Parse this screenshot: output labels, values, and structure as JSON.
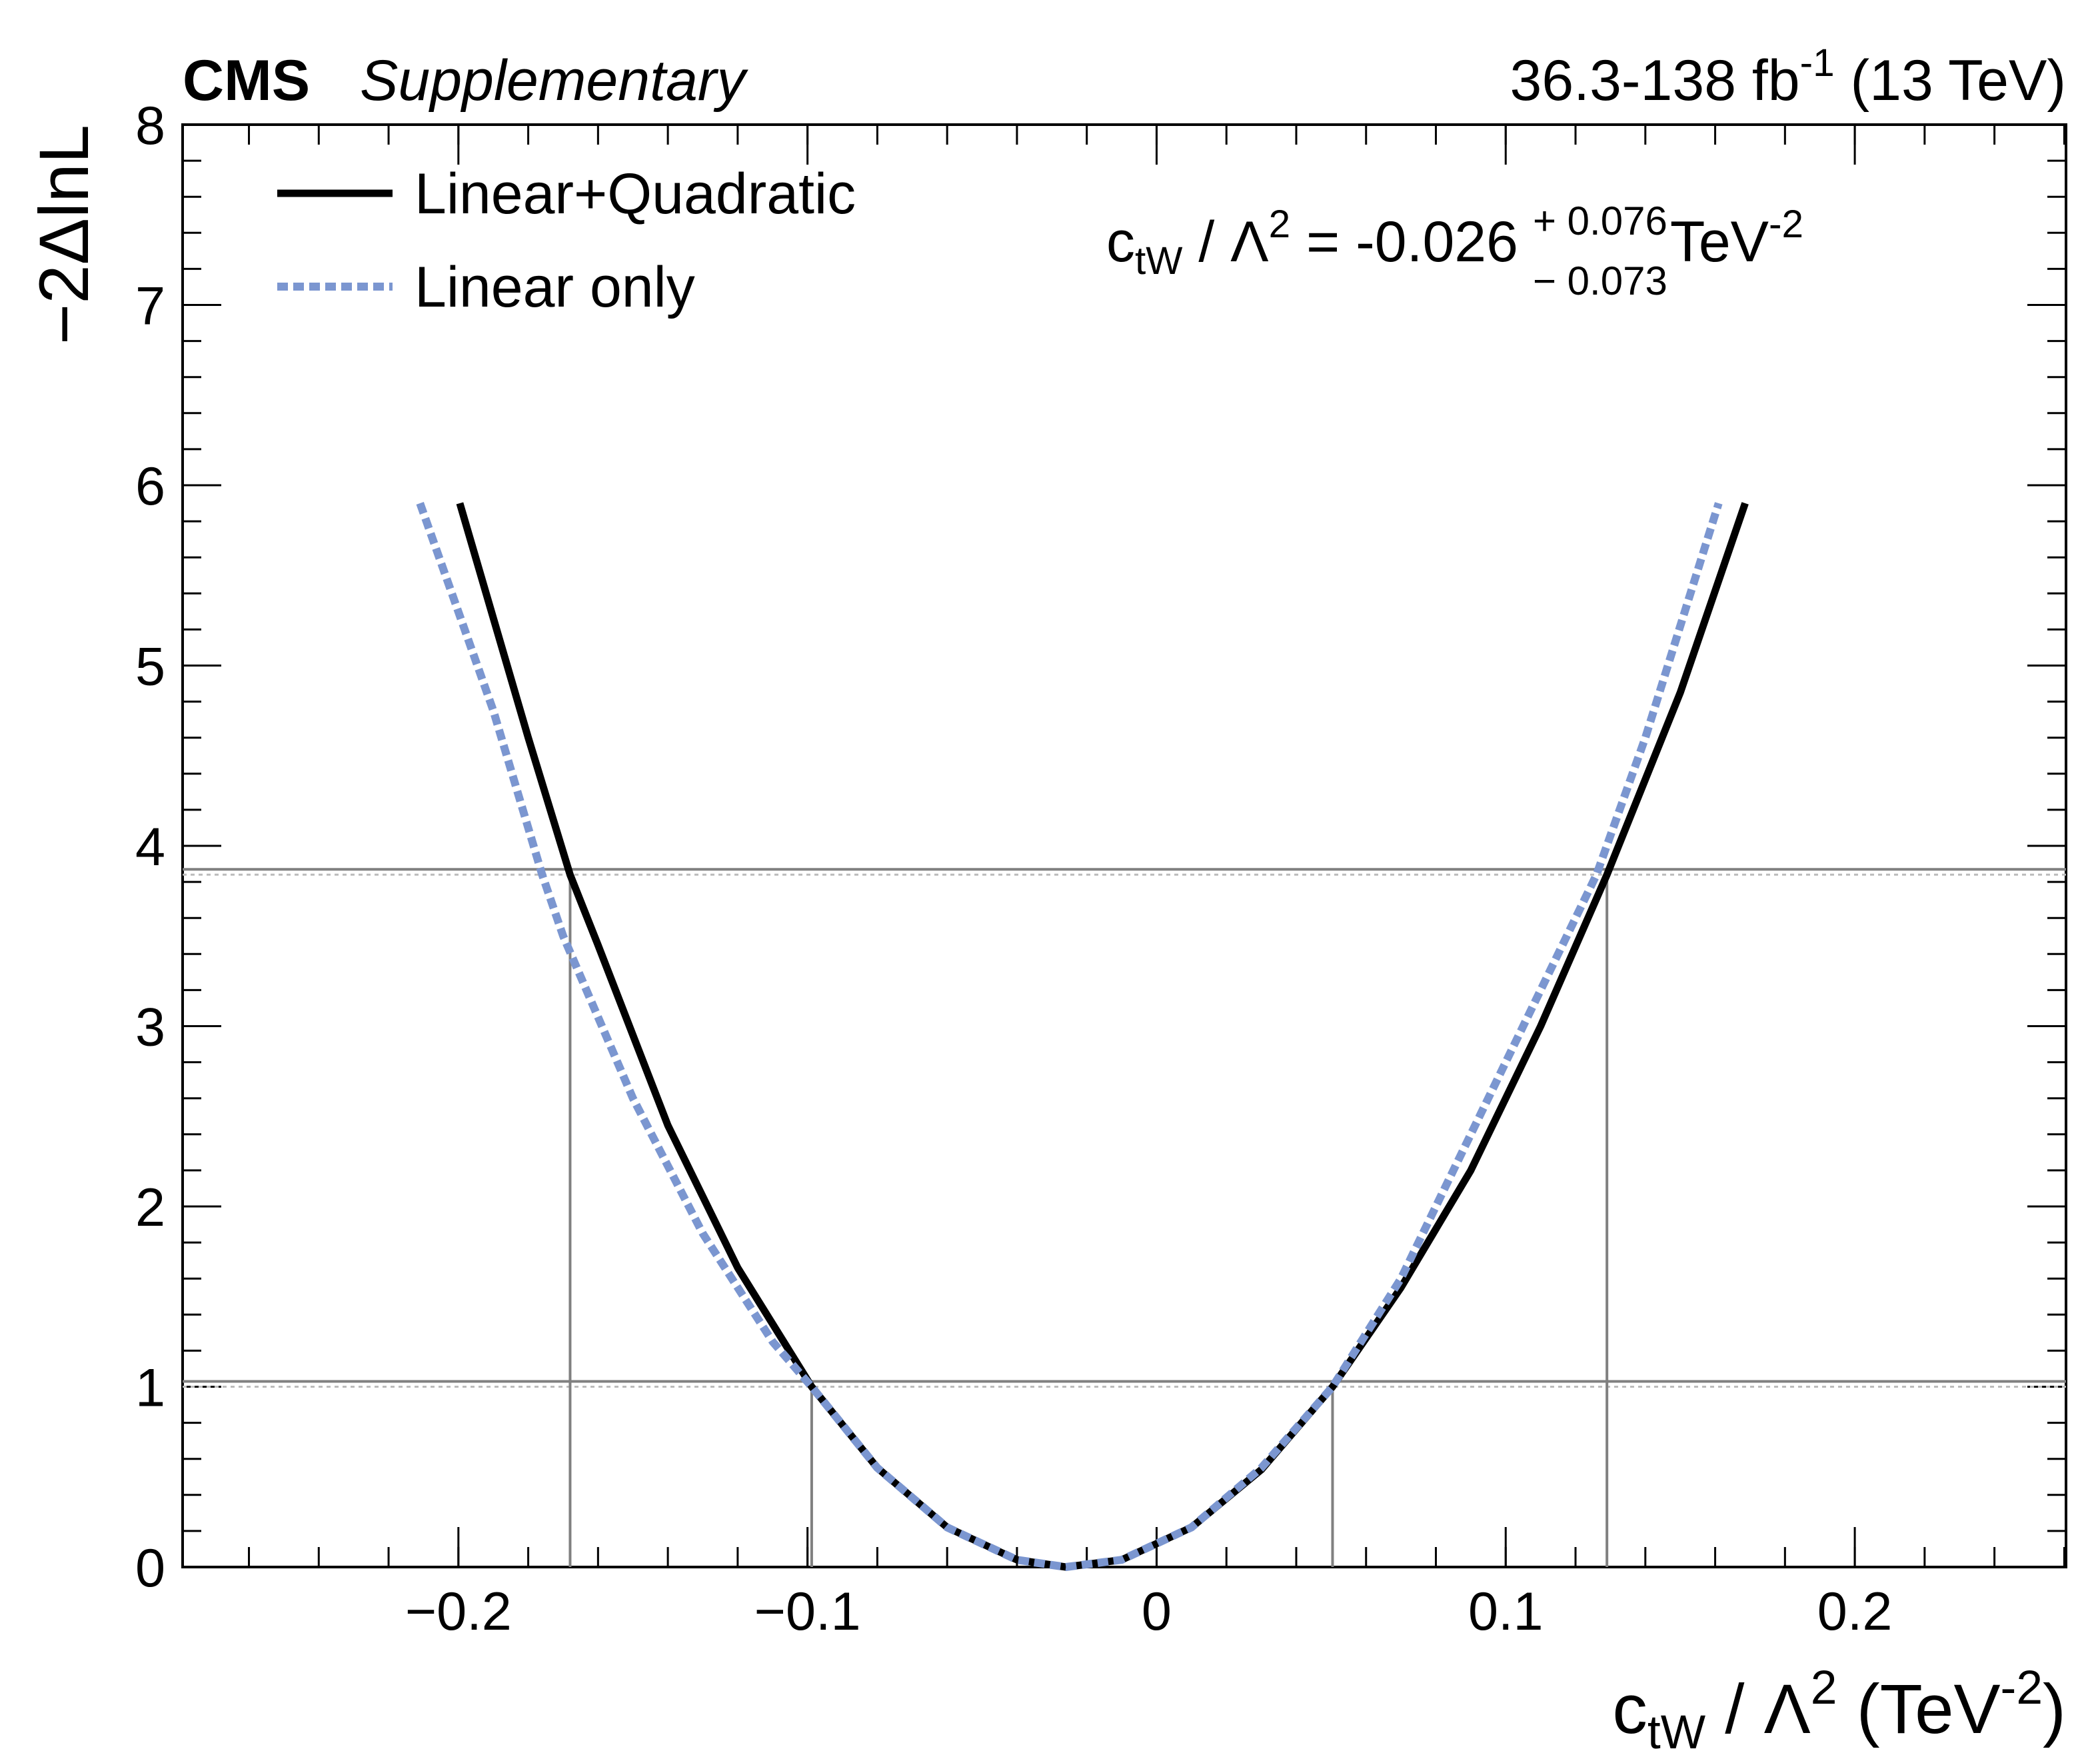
{
  "chart_data": {
    "type": "line",
    "experiment": "CMS",
    "tag": "Supplementary",
    "lumi": [
      {
        "t": "36.3-138 fb"
      },
      {
        "t": "-1",
        "pos": "sup"
      },
      {
        "t": " (13 TeV)"
      }
    ],
    "x_label": [
      {
        "t": "c"
      },
      {
        "t": "tW",
        "pos": "sub"
      },
      {
        "t": " / Λ"
      },
      {
        "t": "2",
        "pos": "sup"
      },
      {
        "t": " (TeV"
      },
      {
        "t": "-2",
        "pos": "sup"
      },
      {
        "t": ")"
      }
    ],
    "y_label": "−2ΔlnL",
    "annotation": {
      "lhs": [
        {
          "t": "c"
        },
        {
          "t": "tW",
          "pos": "sub"
        },
        {
          "t": " / Λ"
        },
        {
          "t": "2",
          "pos": "sup"
        },
        {
          "t": " = -0.026"
        }
      ],
      "up": "+ 0.076",
      "down": "− 0.073",
      "unit": [
        {
          "t": " TeV"
        },
        {
          "t": "-2",
          "pos": "sup"
        }
      ]
    },
    "xlim": [
      -0.279,
      0.2605
    ],
    "ylim": [
      0,
      8
    ],
    "xticks": [
      {
        "value": -0.2,
        "label": "−0.2"
      },
      {
        "value": -0.1,
        "label": "−0.1"
      },
      0,
      0.1,
      0.2
    ],
    "yticks": [
      0,
      1,
      2,
      3,
      4,
      5,
      6,
      7,
      8
    ],
    "x_minor_step": 0.02,
    "y_minor_step": 0.2,
    "legend": "upper left",
    "series": [
      {
        "name": "Linear+Quadratic",
        "color": "#000000",
        "style": "solid",
        "x": [
          -0.1996,
          -0.18,
          -0.168,
          -0.16,
          -0.14,
          -0.12,
          -0.0988,
          -0.08,
          -0.06,
          -0.04,
          -0.026,
          -0.01,
          0.01,
          0.03,
          0.0504,
          0.07,
          0.09,
          0.11,
          0.129,
          0.15,
          0.1686
        ],
        "values": [
          5.9,
          4.6,
          3.84,
          3.45,
          2.45,
          1.66,
          1.0,
          0.55,
          0.22,
          0.04,
          0,
          0.04,
          0.22,
          0.54,
          1.0,
          1.55,
          2.2,
          3.0,
          3.84,
          4.85,
          5.9
        ]
      },
      {
        "name": "Linear only",
        "color": "#7b96d0",
        "style": "dashed",
        "x": [
          -0.211,
          -0.19,
          -0.176,
          -0.17,
          -0.15,
          -0.13,
          -0.11,
          -0.0988,
          -0.08,
          -0.06,
          -0.04,
          -0.026,
          -0.01,
          0.01,
          0.03,
          0.0504,
          0.07,
          0.09,
          0.11,
          0.126,
          0.14,
          0.161
        ],
        "values": [
          5.9,
          4.75,
          3.84,
          3.5,
          2.6,
          1.85,
          1.25,
          1.0,
          0.55,
          0.22,
          0.04,
          0,
          0.04,
          0.22,
          0.55,
          1.0,
          1.6,
          2.4,
          3.2,
          3.84,
          4.6,
          5.9
        ]
      }
    ],
    "hlines": [
      1,
      3.84
    ],
    "vlines": [
      {
        "x": -0.168,
        "top": 3.84
      },
      {
        "x": -0.0988,
        "top": 1
      },
      {
        "x": 0.0504,
        "top": 1
      },
      {
        "x": 0.129,
        "top": 3.84
      }
    ]
  }
}
